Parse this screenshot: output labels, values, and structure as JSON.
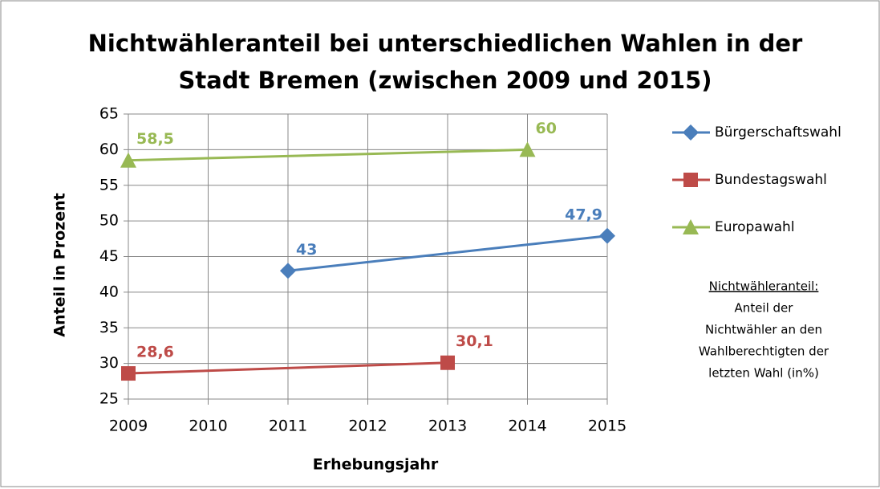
{
  "chart_data": {
    "type": "line",
    "title": [
      "Nichtwähleranteil bei unterschiedlichen Wahlen in der",
      "Stadt Bremen (zwischen 2009 und 2015)"
    ],
    "x_label": "Erhebungsjahr",
    "y_label": "Anteil in Prozent",
    "xlim": [
      2009,
      2015
    ],
    "xticks": [
      2009,
      2010,
      2011,
      2012,
      2013,
      2014,
      2015
    ],
    "ylim": [
      25,
      65
    ],
    "yticks": [
      25,
      30,
      35,
      40,
      45,
      50,
      55,
      60,
      65
    ],
    "grid": true,
    "legend": "right",
    "series": [
      {
        "name": "Bürgerschaftswahl",
        "color": "#4a7ebb",
        "marker": "diamond",
        "x": [
          2011,
          2015
        ],
        "values": [
          43,
          47.9
        ],
        "value_labels": [
          "43",
          "47,9"
        ]
      },
      {
        "name": "Bundestagswahl",
        "color": "#be4b48",
        "marker": "square",
        "x": [
          2009,
          2013
        ],
        "values": [
          28.6,
          30.1
        ],
        "value_labels": [
          "28,6",
          "30,1"
        ]
      },
      {
        "name": "Europawahl",
        "color": "#98b954",
        "marker": "triangle",
        "x": [
          2009,
          2014
        ],
        "values": [
          58.5,
          60
        ],
        "value_labels": [
          "58,5",
          "60"
        ]
      }
    ],
    "annotation": {
      "heading": "Nichtwähleranteil:",
      "lines": [
        "Anteil der",
        "Nichtwähler an den",
        "Wahlberechtigten der",
        "letzten Wahl (in%)"
      ]
    }
  }
}
